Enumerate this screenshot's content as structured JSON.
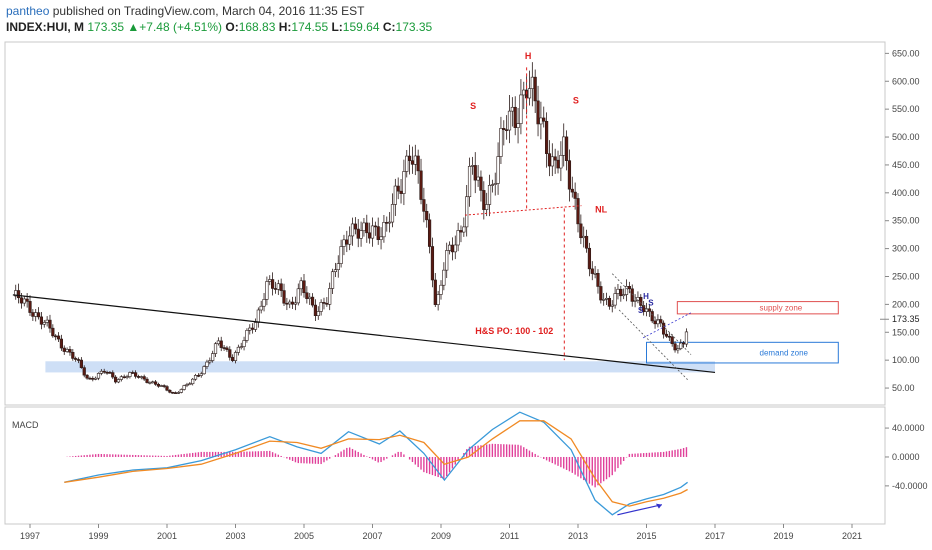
{
  "header": {
    "user": "pantheo",
    "published": " published on TradingView.com, March 04, 2016 11:35 EST",
    "symbol": "INDEX:HUI, M",
    "last": "173.35",
    "change_arrow": "▲",
    "change": "+7.48 (+4.51%)",
    "open_label": "O:",
    "open": "168.83",
    "high_label": "H:",
    "high": "174.55",
    "low_label": "L:",
    "low": "159.64",
    "close_label": "C:",
    "close": "173.35"
  },
  "chart_data": [
    {
      "type": "candlestick",
      "title": "INDEX:HUI, M",
      "x_ticks": [
        "1997",
        "1999",
        "2001",
        "2003",
        "2005",
        "2007",
        "2009",
        "2011",
        "2013",
        "2015",
        "2017",
        "2019",
        "2021"
      ],
      "y_ticks": [
        "650.00",
        "600.00",
        "550.00",
        "500.00",
        "450.00",
        "400.00",
        "350.00",
        "300.00",
        "250.00",
        "200.00",
        "150.00",
        "100.00",
        "50.00"
      ],
      "ylim": [
        25,
        665
      ],
      "last_price_label": "173.35",
      "price_path": [
        [
          1996.5,
          215
        ],
        [
          1997.0,
          195
        ],
        [
          1997.5,
          160
        ],
        [
          1997.9,
          130
        ],
        [
          1998.4,
          95
        ],
        [
          1998.7,
          65
        ],
        [
          1999.2,
          80
        ],
        [
          1999.5,
          65
        ],
        [
          1999.9,
          75
        ],
        [
          2000.4,
          65
        ],
        [
          2000.9,
          50
        ],
        [
          2001.2,
          40
        ],
        [
          2001.7,
          60
        ],
        [
          2002.0,
          80
        ],
        [
          2002.5,
          130
        ],
        [
          2002.9,
          105
        ],
        [
          2003.3,
          140
        ],
        [
          2003.6,
          170
        ],
        [
          2003.9,
          240
        ],
        [
          2004.3,
          220
        ],
        [
          2004.6,
          200
        ],
        [
          2004.9,
          230
        ],
        [
          2005.3,
          190
        ],
        [
          2005.7,
          210
        ],
        [
          2006.0,
          280
        ],
        [
          2006.3,
          340
        ],
        [
          2006.7,
          320
        ],
        [
          2007.0,
          340
        ],
        [
          2007.4,
          330
        ],
        [
          2007.8,
          420
        ],
        [
          2008.1,
          480
        ],
        [
          2008.4,
          400
        ],
        [
          2008.7,
          300
        ],
        [
          2008.85,
          190
        ],
        [
          2009.1,
          270
        ],
        [
          2009.6,
          340
        ],
        [
          2009.9,
          450
        ],
        [
          2010.2,
          380
        ],
        [
          2010.5,
          420
        ],
        [
          2010.9,
          520
        ],
        [
          2011.2,
          550
        ],
        [
          2011.5,
          590
        ],
        [
          2011.7,
          560
        ],
        [
          2012.0,
          520
        ],
        [
          2012.3,
          440
        ],
        [
          2012.6,
          470
        ],
        [
          2012.9,
          390
        ],
        [
          2013.3,
          270
        ],
        [
          2013.6,
          230
        ],
        [
          2013.9,
          200
        ],
        [
          2014.2,
          215
        ],
        [
          2014.5,
          230
        ],
        [
          2014.8,
          200
        ],
        [
          2015.1,
          175
        ],
        [
          2015.4,
          170
        ],
        [
          2015.7,
          130
        ],
        [
          2015.9,
          115
        ],
        [
          2016.1,
          135
        ],
        [
          2016.2,
          173.35
        ]
      ],
      "annotations": {
        "h": "H",
        "s_left": "S",
        "s_right": "S",
        "nl": "NL",
        "po": "H&S PO: 100 - 102",
        "small_s": "S",
        "small_h": "H",
        "small_s2": "S",
        "supply": "supply zone",
        "demand": "demand zone"
      },
      "colors": {
        "candle_up": "#ffffff",
        "candle_down": "#5a1a12",
        "annotation": "#e02020",
        "zone_fill": "#c9dcf5",
        "supply": "#e05050",
        "demand": "#2a7ad8"
      }
    },
    {
      "type": "line",
      "title": "MACD",
      "y_ticks": [
        "40.0000",
        "0.0000",
        "-40.0000"
      ],
      "ylim": [
        -90,
        65
      ],
      "series": [
        {
          "color": "#3a9ad9",
          "points": [
            [
              1998.0,
              -35
            ],
            [
              1999.0,
              -25
            ],
            [
              2000.0,
              -18
            ],
            [
              2001.0,
              -15
            ],
            [
              2002.0,
              -5
            ],
            [
              2003.0,
              10
            ],
            [
              2004.0,
              28
            ],
            [
              2004.8,
              14
            ],
            [
              2005.5,
              5
            ],
            [
              2006.3,
              35
            ],
            [
              2007.2,
              18
            ],
            [
              2007.8,
              36
            ],
            [
              2008.5,
              5
            ],
            [
              2009.1,
              -32
            ],
            [
              2009.8,
              10
            ],
            [
              2010.5,
              38
            ],
            [
              2011.3,
              62
            ],
            [
              2012.0,
              48
            ],
            [
              2012.8,
              10
            ],
            [
              2013.5,
              -60
            ],
            [
              2014.0,
              -80
            ],
            [
              2014.5,
              -65
            ],
            [
              2015.0,
              -58
            ],
            [
              2015.5,
              -52
            ],
            [
              2016.0,
              -42
            ],
            [
              2016.2,
              -35
            ]
          ]
        },
        {
          "color": "#f08a24",
          "points": [
            [
              1998.0,
              -35
            ],
            [
              1999.0,
              -28
            ],
            [
              2000.0,
              -20
            ],
            [
              2001.0,
              -16
            ],
            [
              2002.0,
              -10
            ],
            [
              2003.0,
              5
            ],
            [
              2004.0,
              22
            ],
            [
              2004.8,
              20
            ],
            [
              2005.5,
              12
            ],
            [
              2006.3,
              25
            ],
            [
              2007.2,
              24
            ],
            [
              2007.8,
              30
            ],
            [
              2008.5,
              20
            ],
            [
              2009.1,
              -10
            ],
            [
              2009.8,
              0
            ],
            [
              2010.5,
              25
            ],
            [
              2011.3,
              50
            ],
            [
              2012.0,
              50
            ],
            [
              2012.8,
              25
            ],
            [
              2013.5,
              -30
            ],
            [
              2014.0,
              -62
            ],
            [
              2014.5,
              -68
            ],
            [
              2015.0,
              -62
            ],
            [
              2015.5,
              -57
            ],
            [
              2016.0,
              -50
            ],
            [
              2016.2,
              -45
            ]
          ]
        }
      ],
      "histogram_color": "#e0409a"
    }
  ]
}
